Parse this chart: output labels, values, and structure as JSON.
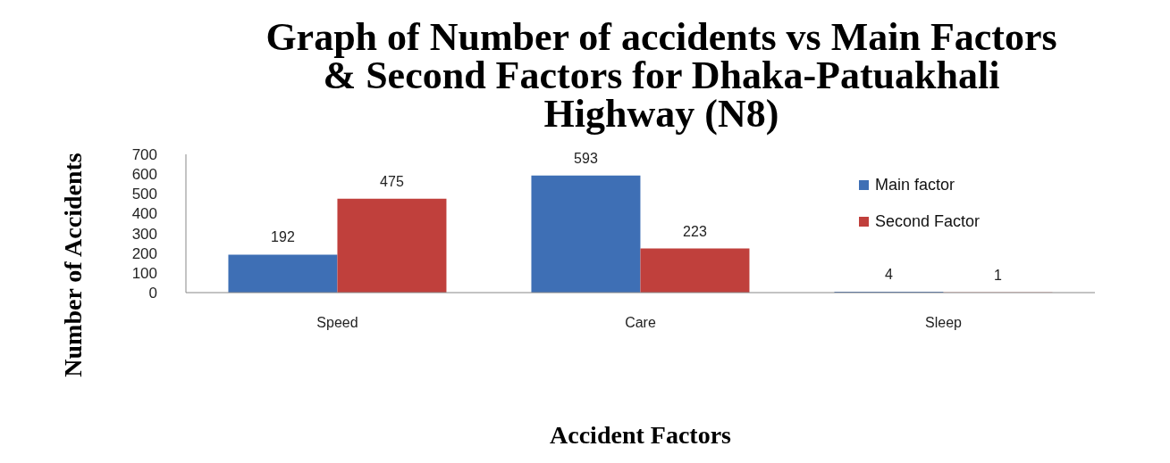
{
  "chart_data": {
    "type": "bar",
    "title": "Graph of Number of accidents vs Main Factors & Second Factors for Dhaka-Patuakhali Highway (N8)",
    "xlabel": "Accident Factors",
    "ylabel": "Number of Accidents",
    "categories": [
      "Speed",
      "Care",
      "Sleep"
    ],
    "series": [
      {
        "name": "Main factor",
        "color": "#3e6fb5",
        "values": [
          192,
          593,
          4
        ]
      },
      {
        "name": "Second Factor",
        "color": "#c0403c",
        "values": [
          475,
          223,
          1
        ]
      }
    ],
    "ylim": [
      0,
      700
    ],
    "yticks": [
      0,
      100,
      200,
      300,
      400,
      500,
      600,
      700
    ],
    "legend": "top right",
    "data_labels": true
  }
}
